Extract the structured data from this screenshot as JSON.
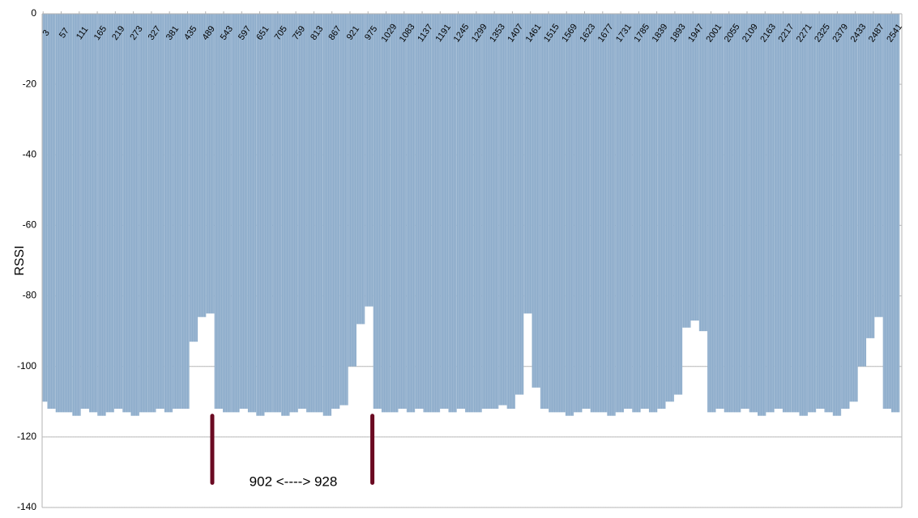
{
  "chart_data": {
    "type": "bar",
    "y_label": "RSSI",
    "annotation": "902 <----> 928",
    "color": "#8eadcb",
    "grid": true,
    "xlim": [
      0,
      2572
    ],
    "ylim": [
      -140,
      0
    ],
    "yticks": [
      0,
      -20,
      -40,
      -60,
      -80,
      -100,
      -120,
      -140
    ],
    "xticks": [
      3,
      57,
      111,
      165,
      219,
      273,
      327,
      381,
      435,
      489,
      543,
      597,
      651,
      705,
      759,
      813,
      867,
      921,
      975,
      1029,
      1083,
      1137,
      1191,
      1245,
      1299,
      1353,
      1407,
      1461,
      1515,
      1569,
      1623,
      1677,
      1731,
      1785,
      1839,
      1893,
      1947,
      2001,
      2055,
      2109,
      2163,
      2217,
      2271,
      2325,
      2379,
      2433,
      2487,
      2541
    ],
    "x": [
      3,
      28,
      53,
      78,
      103,
      128,
      153,
      178,
      203,
      228,
      253,
      278,
      303,
      328,
      353,
      378,
      403,
      428,
      453,
      478,
      503,
      528,
      553,
      578,
      603,
      628,
      653,
      678,
      703,
      728,
      753,
      778,
      803,
      828,
      853,
      878,
      903,
      928,
      953,
      978,
      1003,
      1028,
      1053,
      1078,
      1103,
      1128,
      1153,
      1178,
      1203,
      1228,
      1253,
      1278,
      1303,
      1328,
      1353,
      1378,
      1403,
      1428,
      1453,
      1478,
      1503,
      1528,
      1553,
      1578,
      1603,
      1628,
      1653,
      1678,
      1703,
      1728,
      1753,
      1778,
      1803,
      1828,
      1853,
      1878,
      1903,
      1928,
      1953,
      1978,
      2003,
      2028,
      2053,
      2078,
      2103,
      2128,
      2153,
      2178,
      2203,
      2228,
      2253,
      2278,
      2303,
      2328,
      2353,
      2378,
      2403,
      2428,
      2453,
      2478,
      2503,
      2528,
      2553
    ],
    "values": [
      -110,
      -112,
      -113,
      -113,
      -114,
      -112,
      -113,
      -114,
      -113,
      -112,
      -113,
      -114,
      -113,
      -113,
      -112,
      -113,
      -112,
      -112,
      -93,
      -86,
      -85,
      -112,
      -113,
      -113,
      -112,
      -113,
      -114,
      -113,
      -113,
      -114,
      -113,
      -112,
      -113,
      -113,
      -114,
      -112,
      -111,
      -100,
      -88,
      -83,
      -112,
      -113,
      -113,
      -112,
      -113,
      -112,
      -113,
      -113,
      -112,
      -113,
      -112,
      -113,
      -113,
      -112,
      -112,
      -111,
      -112,
      -108,
      -85,
      -106,
      -112,
      -113,
      -113,
      -114,
      -113,
      -112,
      -113,
      -113,
      -114,
      -113,
      -112,
      -113,
      -112,
      -113,
      -112,
      -110,
      -108,
      -89,
      -87,
      -90,
      -113,
      -112,
      -113,
      -113,
      -112,
      -113,
      -114,
      -113,
      -112,
      -113,
      -113,
      -114,
      -113,
      -112,
      -113,
      -114,
      -112,
      -110,
      -100,
      -92,
      -86,
      -112,
      -113
    ],
    "markers": [
      509,
      988
    ],
    "marker_range": [
      -114,
      -133
    ],
    "marker_color": "#6b0a22"
  }
}
